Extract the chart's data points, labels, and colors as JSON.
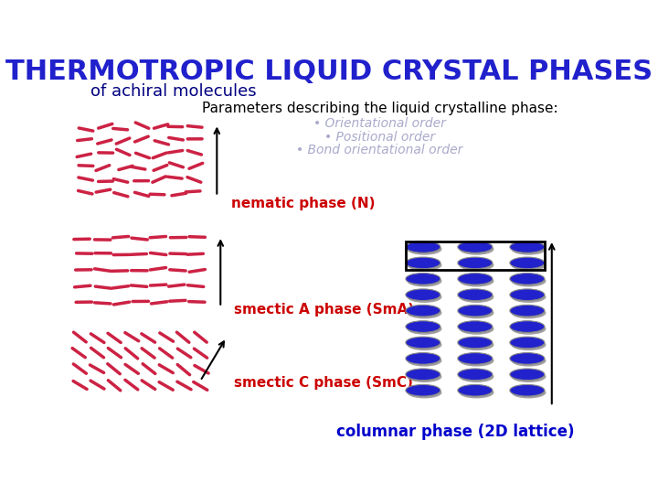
{
  "background_color": "#ffffff",
  "title": "THERMOTROPIC LIQUID CRYSTAL PHASES",
  "title_color": "#2020cc",
  "title_fontsize": 22,
  "subtitle": "of achiral molecules",
  "subtitle_color": "#000080",
  "subtitle_fontsize": 13,
  "params_title": "Parameters describing the liquid crystalline phase:",
  "params_title_color": "#000000",
  "params_title_fontsize": 11,
  "bullet_items": [
    "Orientational order",
    "Positional order",
    "Bond orientational order"
  ],
  "bullet_color": "#aaaacc",
  "bullet_fontsize": 10,
  "phase_labels": [
    "nematic phase (N)",
    "smectic A phase (SmA)",
    "smectic C phase (SmC)",
    "columnar phase (2D lattice)"
  ],
  "phase_label_colors": [
    "#cc0000",
    "#cc0000",
    "#cc0000",
    "#0000cc"
  ],
  "phase_label_fontsizes": [
    11,
    11,
    11,
    12
  ],
  "rod_color": "#cc2244",
  "disk_color": "#2222cc",
  "disk_edge_color": "#888888",
  "arrow_color": "#000000"
}
